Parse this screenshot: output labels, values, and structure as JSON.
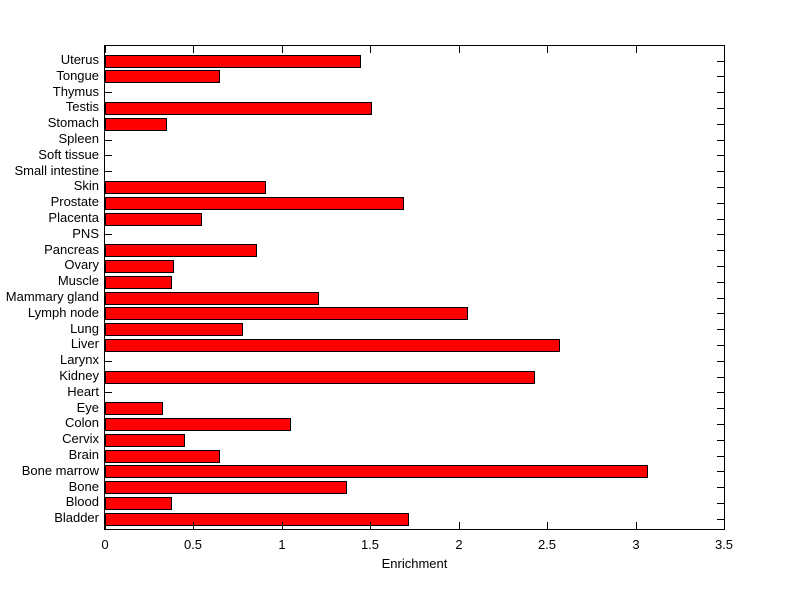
{
  "chart_data": {
    "type": "bar",
    "orientation": "horizontal",
    "title": "",
    "xlabel": "Enrichment",
    "ylabel": "",
    "xlim": [
      0,
      3.5
    ],
    "x_ticks": [
      0,
      0.5,
      1,
      1.5,
      2,
      2.5,
      3,
      3.5
    ],
    "x_tick_labels": [
      "0",
      "0.5",
      "1",
      "1.5",
      "2",
      "2.5",
      "3",
      "3.5"
    ],
    "grid": false,
    "legend": false,
    "bar_color": "#ff0000",
    "bar_edge_color": "#000000",
    "axis_color": "#000000",
    "categories_top_to_bottom": [
      "Uterus",
      "Tongue",
      "Thymus",
      "Testis",
      "Stomach",
      "Spleen",
      "Soft tissue",
      "Small intestine",
      "Skin",
      "Prostate",
      "Placenta",
      "PNS",
      "Pancreas",
      "Ovary",
      "Muscle",
      "Mammary gland",
      "Lymph node",
      "Lung",
      "Liver",
      "Larynx",
      "Kidney",
      "Heart",
      "Eye",
      "Colon",
      "Cervix",
      "Brain",
      "Bone marrow",
      "Bone",
      "Blood",
      "Bladder"
    ],
    "values": [
      1.45,
      0.65,
      0,
      1.51,
      0.35,
      0,
      0,
      0,
      0.91,
      1.69,
      0.55,
      0,
      0.86,
      0.39,
      0.38,
      1.21,
      2.05,
      0.78,
      2.57,
      0,
      2.43,
      0,
      0.33,
      1.05,
      0.45,
      0.65,
      3.07,
      1.37,
      0.38,
      1.72
    ]
  }
}
